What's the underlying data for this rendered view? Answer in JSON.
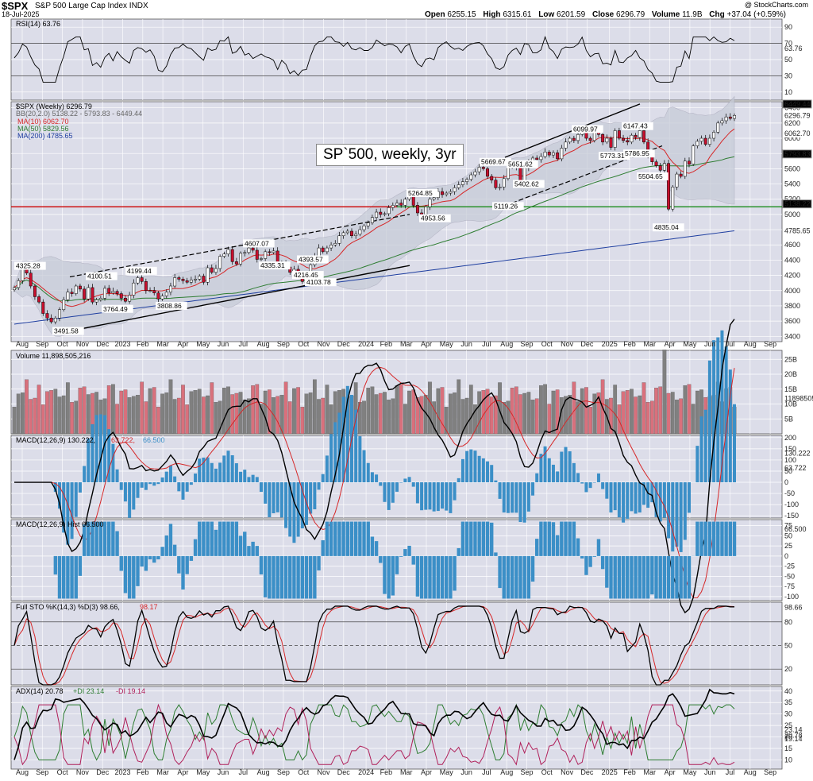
{
  "header": {
    "symbol": "$SPX",
    "name": "S&P 500 Large Cap Index  INDX",
    "date": "18-Jul-2025",
    "credit": "@ StockCharts.com",
    "open_label": "Open",
    "open": "6255.15",
    "high_label": "High",
    "high": "6315.61",
    "low_label": "Low",
    "low": "6201.59",
    "close_label": "Close",
    "close": "6296.79",
    "volume_label": "Volume",
    "volume": "11.9B",
    "chg_label": "Chg",
    "chg": "+37.04 (+0.59%)"
  },
  "chart_label": "SP`500, weekly, 3yr",
  "panels": {
    "rsi": {
      "title": "RSI(14) 63.76",
      "last": "63.76",
      "ticks": [
        "90",
        "70",
        "50",
        "30",
        "10"
      ]
    },
    "price": {
      "title": "$SPX (Weekly) 6296.79",
      "bb": "BB(20,2.0) 5138.22 - 5793.83 - 6449.44",
      "ma10": "MA(10) 6062.70",
      "ma50": "MA(50) 5829.56",
      "ma200": "MA(200) 4785.65",
      "ticks": [
        "6400",
        "6200",
        "6000",
        "5800",
        "5600",
        "5400",
        "5200",
        "5000",
        "4800",
        "4600",
        "4400",
        "4200",
        "4000",
        "3800",
        "3600",
        "3400"
      ],
      "right_labels": [
        "6449.44",
        "6296.79",
        "6062.70",
        "5793.83",
        "5138.22",
        "4785.65"
      ]
    },
    "volume": {
      "title": "Volume 11,898,505,216",
      "last": "11898505",
      "ticks": [
        "25B",
        "20B",
        "15B",
        "10B",
        "5B"
      ]
    },
    "macd": {
      "title": "MACD(12,26,9) 130.222,",
      "signal": "63.722,",
      "hist": "66.500",
      "ticks": [
        "200",
        "150",
        "100",
        "50",
        "0",
        "-50",
        "-100",
        "-150"
      ],
      "right_labels": [
        "130.222",
        "63.722"
      ]
    },
    "hist": {
      "title": "MACD(12,26,9) Hist 66.500",
      "last": "66.500",
      "ticks": [
        "75",
        "50",
        "25",
        "0",
        "-25",
        "-50",
        "-75",
        "-100"
      ]
    },
    "sto": {
      "title": "Full STO %K(14,3) %D(3) 98.66,",
      "d": "98.17",
      "ticks": [
        "80",
        "50",
        "20"
      ],
      "last": "98.66"
    },
    "adx": {
      "title": "ADX(14) 20.78",
      "pdi": "+DI 23.14",
      "mdi": "-DI 19.14",
      "ticks": [
        "40",
        "35",
        "30",
        "25",
        "20",
        "15",
        "10"
      ],
      "right_labels": [
        "23.14",
        "20.78",
        "19.14"
      ]
    }
  },
  "x_axis": {
    "labels": [
      "Aug",
      "Sep",
      "Oct",
      "Nov",
      "Dec",
      "2023",
      "Feb",
      "Mar",
      "Apr",
      "May",
      "Jun",
      "Jul",
      "Aug",
      "Sep",
      "Oct",
      "Nov",
      "Dec",
      "2024",
      "Feb",
      "Mar",
      "Apr",
      "May",
      "Jun",
      "Jul",
      "Aug",
      "Sep",
      "Oct",
      "Nov",
      "Dec",
      "2025",
      "Feb",
      "Mar",
      "Apr",
      "May",
      "Jun",
      "Jul",
      "Aug",
      "Sep"
    ]
  },
  "annotations": [
    "4325.28",
    "3491.58",
    "4100.51",
    "4199.44",
    "3764.49",
    "3808.86",
    "4607.07",
    "4335.31",
    "4393.57",
    "4216.45",
    "4103.78",
    "5264.85",
    "4953.56",
    "5669.67",
    "5651.62",
    "5119.26",
    "5402.62",
    "6099.97",
    "6147.43",
    "5773.31",
    "5786.95",
    "5504.65",
    "4835.04"
  ],
  "colors": {
    "up": "#ffffff",
    "down": "#c8102e",
    "volume_up": "#808080",
    "volume_down": "#d9707c",
    "ma10": "#d62728",
    "ma50": "#2e7d32",
    "ma200": "#1f3fa0",
    "macd_hist": "#3b8fc7",
    "support": "#cc0000",
    "support2": "#1a8a1a",
    "panel_bg": "#dcdde9"
  },
  "chart_data": {
    "type": "candlestick",
    "title": "$SPX (Weekly)",
    "timeframe": "weekly, Aug 2022 - Jul 2025",
    "ylim": [
      3400,
      6450
    ],
    "series": [
      {
        "name": "$SPX weekly close",
        "values": [
          4040,
          4130,
          4280,
          4230,
          4060,
          3920,
          3850,
          3700,
          3640,
          3590,
          3640,
          3750,
          3880,
          3980,
          3960,
          4060,
          4020,
          3890,
          4040,
          3850,
          3880,
          3900,
          4030,
          3970,
          3990,
          3960,
          3900,
          3860,
          3940,
          4100,
          4170,
          4120,
          4000,
          4000,
          3970,
          3890,
          3930,
          3980,
          4060,
          4170,
          4150,
          4130,
          4110,
          4140,
          4150,
          4190,
          4110,
          4300,
          4240,
          4290,
          4450,
          4480,
          4540,
          4380,
          4350,
          4490,
          4500,
          4560,
          4530,
          4410,
          4420,
          4510,
          4500,
          4520,
          4330,
          4370,
          4310,
          4240,
          4280,
          4220,
          4120,
          4170,
          4340,
          4450,
          4560,
          4510,
          4560,
          4600,
          4620,
          4720,
          4760,
          4780,
          4720,
          4740,
          4800,
          4850,
          4890,
          4960,
          5030,
          5000,
          5010,
          5090,
          5120,
          5150,
          5120,
          5200,
          5250,
          5120,
          5020,
          5000,
          5100,
          5200,
          5220,
          5300,
          5260,
          5280,
          5300,
          5350,
          5390,
          5430,
          5460,
          5520,
          5560,
          5620,
          5600,
          5500,
          5450,
          5350,
          5360,
          5470,
          5650,
          5630,
          5620,
          5410,
          5610,
          5700,
          5740,
          5720,
          5760,
          5820,
          5780,
          5810,
          5730,
          5870,
          5950,
          6000,
          5970,
          6050,
          6090,
          6000,
          5970,
          6070,
          6050,
          5950,
          6000,
          5880,
          6100,
          6000,
          5970,
          5950,
          6040,
          6010,
          6100,
          5950,
          5770,
          5690,
          5640,
          5580,
          5670,
          5070,
          5360,
          5530,
          5500,
          5700,
          5660,
          5900,
          5960,
          6000,
          5920,
          6000,
          6080,
          6200,
          6230,
          6280,
          6260,
          6300
        ]
      },
      {
        "name": "MA(10)",
        "last": 6062.7
      },
      {
        "name": "MA(50)",
        "last": 5829.56
      },
      {
        "name": "MA(200)",
        "last": 4785.65
      }
    ],
    "bands": {
      "upper": 6449.44,
      "middle": 5793.83,
      "lower": 5138.22
    },
    "levels": {
      "support_red": 5100
    }
  }
}
